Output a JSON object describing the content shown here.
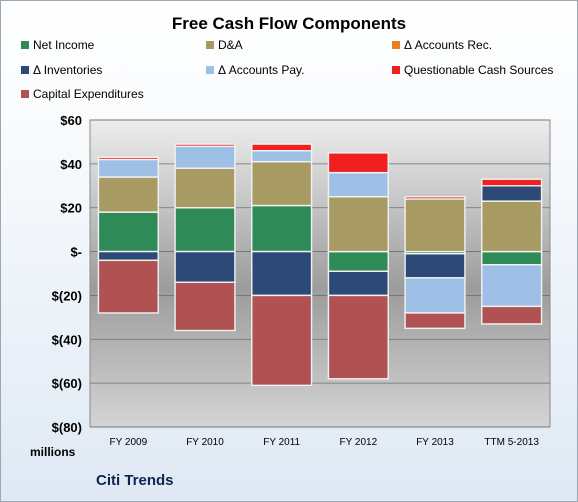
{
  "chart_data": {
    "type": "bar",
    "stacked": true,
    "title": "Free Cash Flow Components",
    "categories": [
      "FY 2009",
      "FY 2010",
      "FY 2011",
      "FY 2012",
      "FY 2013",
      "TTM 5-2013"
    ],
    "ylabel": "millions",
    "ylim": [
      -80,
      60
    ],
    "yticks": [
      60,
      40,
      20,
      0,
      -20,
      -40,
      -60,
      -80
    ],
    "ytick_labels": [
      "$60",
      "$40",
      "$20",
      "$-",
      "$(20)",
      "$(40)",
      "$(60)",
      "$(80)"
    ],
    "grid": true,
    "legend_position": "top",
    "series": [
      {
        "name": "Net Income",
        "color": "#2e8b57",
        "values": [
          18,
          20,
          21,
          -9,
          -1,
          -6
        ]
      },
      {
        "name": "D&A",
        "color": "#a89a63",
        "values": [
          16,
          18,
          20,
          25,
          24,
          23
        ]
      },
      {
        "name": "Δ Accounts Rec.",
        "color": "#e8821c",
        "values": [
          0,
          0,
          0,
          0,
          0,
          0
        ]
      },
      {
        "name": "Δ Inventories",
        "color": "#2c4a75",
        "values": [
          -4,
          -14,
          -20,
          -11,
          -11,
          7
        ]
      },
      {
        "name": "Δ Accounts Pay.",
        "color": "#9ec0e6",
        "values": [
          8,
          10,
          5,
          11,
          -16,
          -19
        ]
      },
      {
        "name": "Questionable Cash Sources",
        "color": "#ee2020",
        "values": [
          1,
          1,
          3,
          9,
          1,
          3
        ]
      },
      {
        "name": "Capital Expenditures",
        "color": "#b05252",
        "values": [
          -24,
          -22,
          -41,
          -38,
          -7,
          -8
        ]
      }
    ]
  },
  "footer": {
    "company": "Citi Trends"
  }
}
